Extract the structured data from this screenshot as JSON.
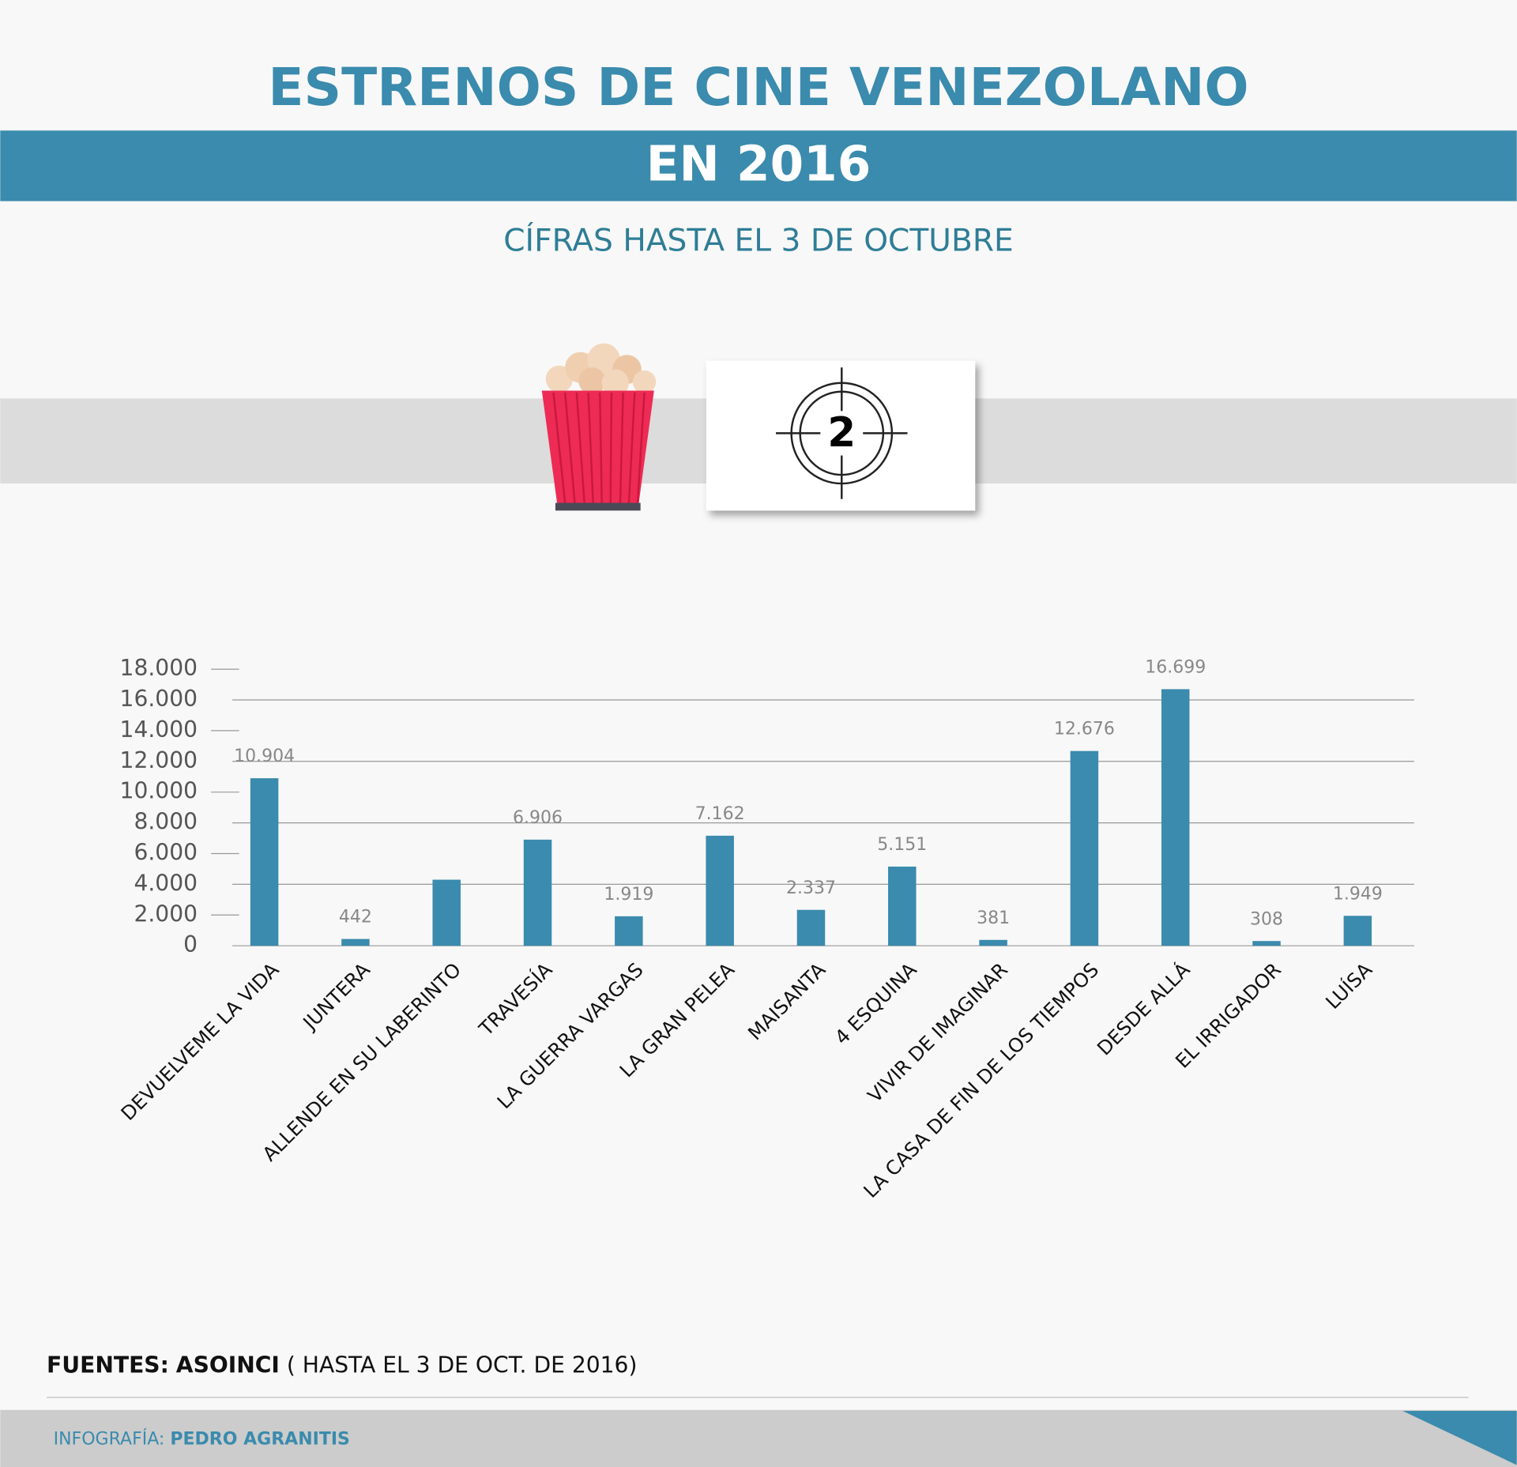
{
  "chart_data": {
    "type": "bar",
    "title": "ESTRENOS DE CINE VENEZOLANO",
    "title_banner": "EN 2016",
    "subtitle": "CÍFRAS HASTA EL 3 DE OCTUBRE",
    "countdown": "2",
    "categories": [
      "DEVUELVEME LA VIDA",
      "JUNTERA",
      "ALLENDE EN SU LABERINTO",
      "TRAVESÍA",
      "LA GUERRA VARGAS",
      "LA GRAN PELEA",
      "MAISANTA",
      "4 ESQUINA",
      "VIVIR DE IMAGINAR",
      "LA CASA DE FIN DE LOS TIEMPOS",
      "DESDE ALLÁ",
      "EL IRRIGADOR",
      "LUÍSA"
    ],
    "values": [
      10904,
      442,
      4300,
      6906,
      1919,
      7162,
      2337,
      5151,
      381,
      12676,
      16699,
      308,
      1949
    ],
    "value_labels": [
      "10.904",
      "442",
      null,
      "6.906",
      "1.919",
      "7.162",
      "2.337",
      "5.151",
      "381",
      "12.676",
      "16.699",
      "308",
      "1.949"
    ],
    "color": "#3a8bad",
    "ylim": [
      0,
      18000
    ],
    "yticks": [
      0,
      {
        "value": 2000,
        "label": "2.000"
      },
      {
        "value": 4000,
        "label": "4.000"
      },
      {
        "value": 6000,
        "label": "6.000"
      },
      {
        "value": 8000,
        "label": "8.000"
      },
      {
        "value": 10000,
        "label": "10.000"
      },
      {
        "value": 12000,
        "label": "12.000"
      },
      {
        "value": 14000,
        "label": "14.000"
      },
      {
        "value": 16000,
        "label": "16.000"
      },
      {
        "value": 18000,
        "label": "18.000"
      }
    ],
    "grid": true
  },
  "source": {
    "label": "FUENTES:",
    "name": "ASOINCI",
    "note": "( HASTA EL 3 DE OCT. DE 2016)"
  },
  "credit": {
    "label": "INFOGRAFÍA:",
    "name": "PEDRO AGRANITIS"
  }
}
